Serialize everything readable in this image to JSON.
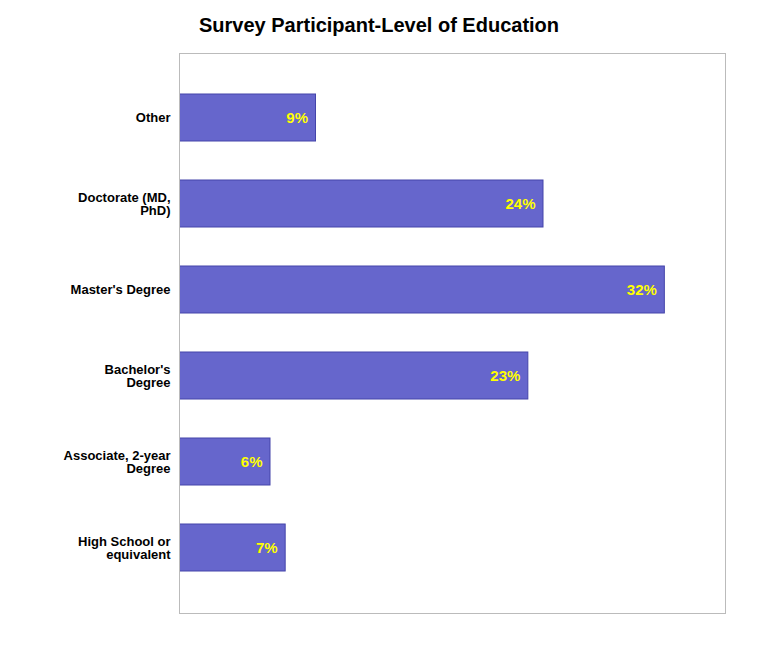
{
  "chart_data": {
    "type": "bar",
    "orientation": "horizontal",
    "title": "Survey Participant-Level of Education",
    "categories": [
      "High School or\nequivalent",
      "Associate, 2-year\nDegree",
      "Bachelor's\nDegree",
      "Master's Degree",
      "Doctorate (MD,\nPhD)",
      "Other"
    ],
    "values": [
      7,
      6,
      23,
      32,
      24,
      9
    ],
    "value_labels": [
      "7%",
      "6%",
      "23%",
      "32%",
      "24%",
      "9%"
    ],
    "data_labels": true,
    "color": "#6666CC",
    "xlim": [
      0,
      36
    ],
    "tick_labels": "y",
    "grid": false
  }
}
